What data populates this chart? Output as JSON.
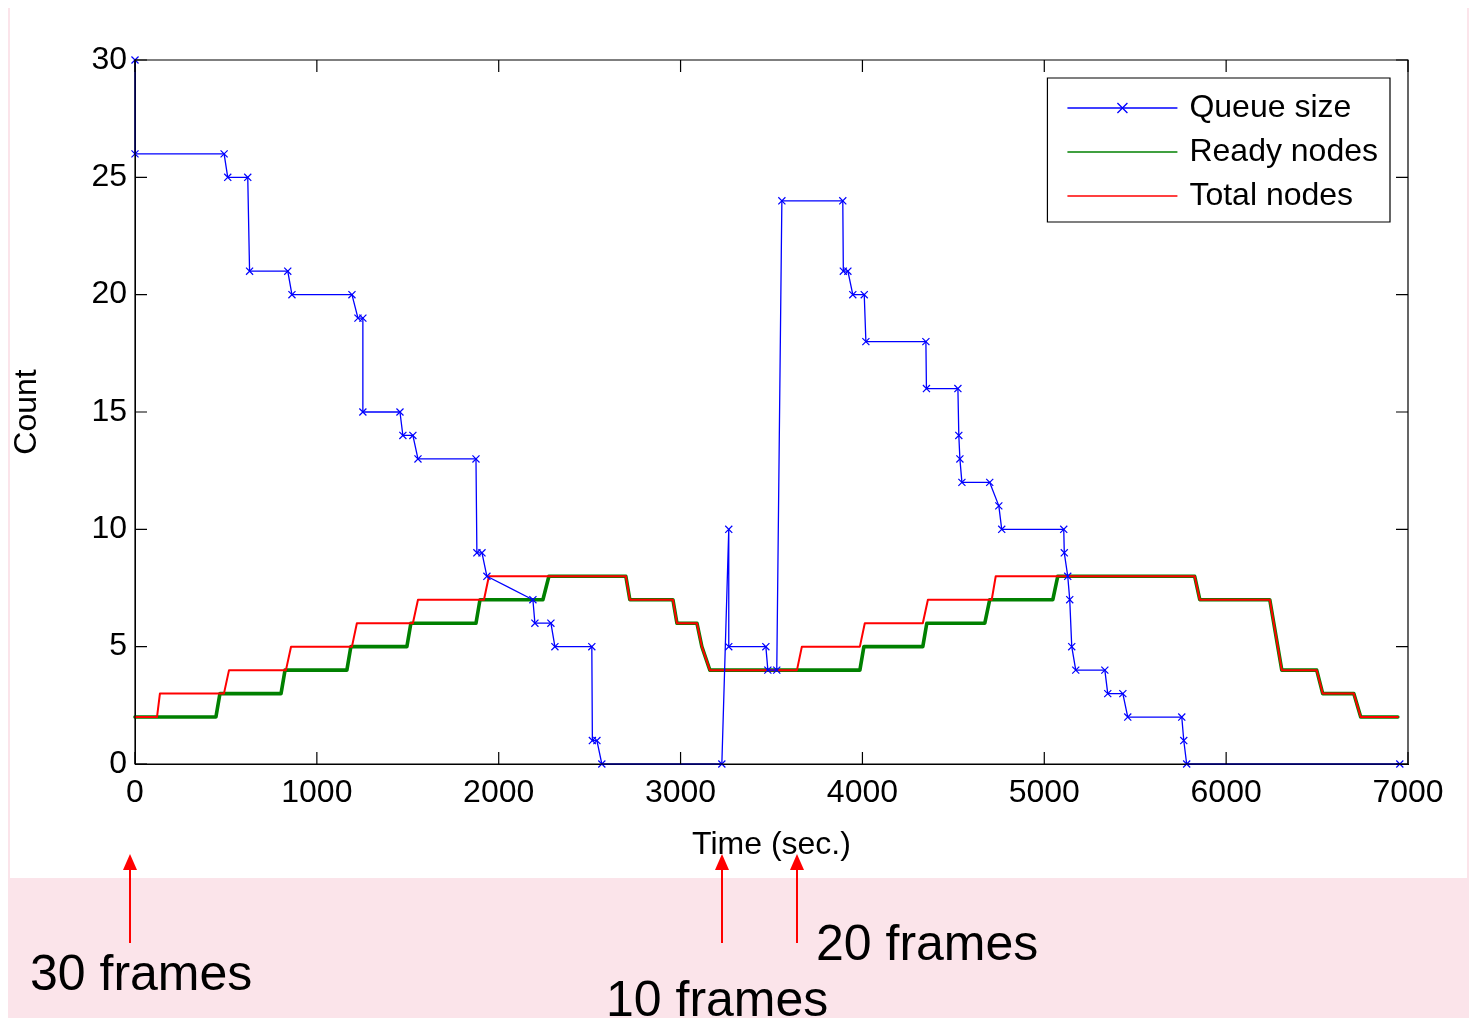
{
  "chart_data": {
    "type": "line",
    "xlabel": "Time (sec.)",
    "ylabel": "Count",
    "xlim": [
      0,
      7000
    ],
    "xticks": [
      0,
      1000,
      2000,
      3000,
      4000,
      5000,
      6000,
      7000
    ],
    "ylim": [
      0,
      30
    ],
    "yticks": [
      0,
      5,
      10,
      15,
      20,
      25,
      30
    ],
    "grid": false,
    "legend": "top right",
    "line_style": "solid",
    "series": [
      {
        "name": "Queue size",
        "color": "#0000ff",
        "marker": "cross",
        "x": [
          0,
          0,
          490,
          510,
          620,
          630,
          840,
          863,
          1193,
          1226,
          1253,
          1253,
          1457,
          1473,
          1528,
          1556,
          1875,
          1880,
          1908,
          1935,
          2188,
          2199,
          2287,
          2309,
          2512,
          2515,
          2540,
          2567,
          3227,
          3265,
          3265,
          3469,
          3480,
          3529,
          3557,
          3892,
          3895,
          3920,
          3947,
          4010,
          4019,
          4349,
          4352,
          4525,
          4530,
          4536,
          4547,
          4700,
          4750,
          4766,
          5107,
          5110,
          5129,
          5140,
          5151,
          5173,
          5333,
          5349,
          5432,
          5459,
          5756,
          5767,
          5783,
          6955
        ],
        "values": [
          30,
          26,
          26,
          25,
          25,
          21,
          21,
          20,
          20,
          19,
          19,
          15,
          15,
          14,
          14,
          13,
          13,
          9,
          9,
          8,
          7,
          6,
          6,
          5,
          5,
          1,
          1,
          0,
          0,
          10,
          5,
          5,
          4,
          4,
          24,
          24,
          21,
          21,
          20,
          20,
          18,
          18,
          16,
          16,
          14,
          13,
          12,
          12,
          11,
          10,
          10,
          9,
          8,
          7,
          5,
          4,
          4,
          3,
          3,
          2,
          2,
          1,
          0,
          0
        ]
      },
      {
        "name": "Ready nodes",
        "color": "#008000",
        "marker": "none",
        "x": [
          0,
          445,
          467,
          803,
          825,
          1165,
          1187,
          1495,
          1517,
          1875,
          1897,
          2243,
          2276,
          2699,
          2721,
          2958,
          2980,
          3090,
          3117,
          3161,
          3986,
          4008,
          4332,
          4354,
          4673,
          4700,
          5047,
          5074,
          5827,
          5855,
          6240,
          6306,
          6498,
          6531,
          6702,
          6740,
          6944
        ],
        "values": [
          2,
          2,
          3,
          3,
          4,
          4,
          5,
          5,
          6,
          6,
          7,
          7,
          8,
          8,
          7,
          7,
          6,
          6,
          5,
          4,
          4,
          5,
          5,
          6,
          6,
          7,
          7,
          8,
          8,
          7,
          7,
          4,
          4,
          3,
          3,
          2,
          2
        ]
      },
      {
        "name": "Total nodes",
        "color": "#ff0000",
        "marker": "none",
        "x": [
          0,
          121,
          137,
          489,
          517,
          830,
          858,
          1193,
          1220,
          1528,
          1556,
          1919,
          1946,
          2699,
          2721,
          2958,
          2980,
          3090,
          3117,
          3161,
          3640,
          3667,
          3986,
          4013,
          4332,
          4360,
          4711,
          4733,
          5827,
          5855,
          6240,
          6306,
          6498,
          6531,
          6702,
          6740,
          6944
        ],
        "values": [
          2,
          2,
          3,
          3,
          4,
          4,
          5,
          5,
          6,
          6,
          7,
          7,
          8,
          8,
          7,
          7,
          6,
          6,
          5,
          4,
          4,
          5,
          5,
          6,
          6,
          7,
          7,
          8,
          8,
          7,
          7,
          4,
          4,
          3,
          3,
          2,
          2
        ]
      }
    ],
    "annotations": [
      "30 frames",
      "10 frames",
      "20 frames"
    ]
  }
}
